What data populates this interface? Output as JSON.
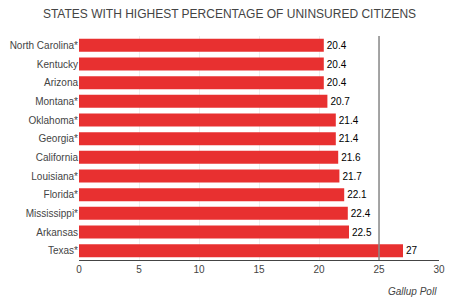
{
  "chart_data": {
    "type": "bar",
    "orientation": "horizontal",
    "title": "STATES WITH HIGHEST PERCENTAGE OF UNINSURED CITIZENS",
    "categories": [
      "Texas*",
      "Arkansas",
      "Mississippi*",
      "Florida*",
      "Louisiana*",
      "California",
      "Georgia*",
      "Oklahoma*",
      "Montana*",
      "Arizona",
      "Kentucky",
      "North Carolina*"
    ],
    "values": [
      27,
      22.5,
      22.4,
      22.1,
      21.7,
      21.6,
      21.4,
      21.4,
      20.7,
      20.4,
      20.4,
      20.4
    ],
    "color": "#e83030",
    "data_labels": true,
    "xlim": [
      0,
      30
    ],
    "xticks": [
      0,
      5,
      10,
      15,
      20,
      25,
      30
    ],
    "grid": true,
    "vline_x": 25,
    "annotations": [
      "Gallup Poll"
    ]
  }
}
